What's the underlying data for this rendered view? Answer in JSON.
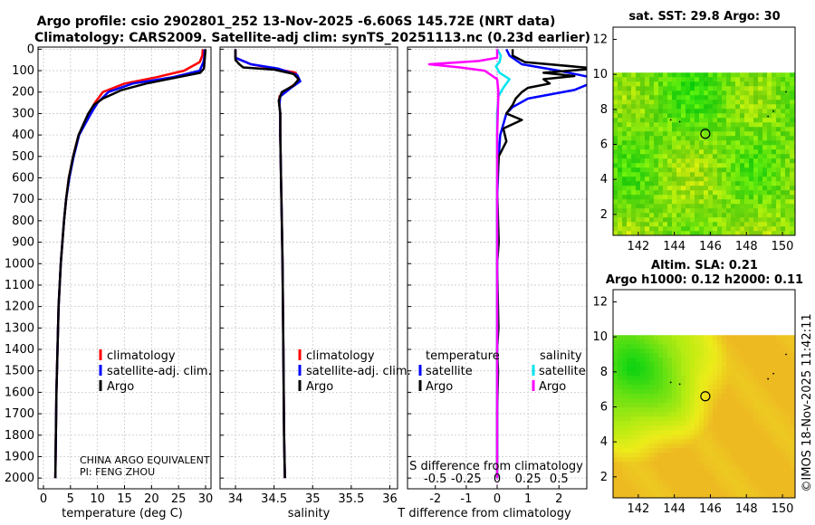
{
  "title": {
    "line1": "Argo profile: csio 2902801_252 13-Nov-2025 -6.606S 145.72E (NRT data)",
    "line2": "Climatology: CARS2009. Satellite-adj clim: synTS_20251113.nc (0.23d earlier)"
  },
  "colors": {
    "climatology": "#ff0000",
    "satellite": "#0000ff",
    "argo": "#000000",
    "sat_salinity": "#00e5ee",
    "argo_salinity": "#ff00ff",
    "grid": "#c8c8c8"
  },
  "depth_ticks": [
    "0",
    "100",
    "200",
    "300",
    "400",
    "500",
    "600",
    "700",
    "800",
    "900",
    "1000",
    "1100",
    "1200",
    "1300",
    "1400",
    "1500",
    "1600",
    "1700",
    "1800",
    "1900",
    "2000"
  ],
  "panel_temp": {
    "xlabel": "temperature (deg C)",
    "xticks": [
      "0",
      "5",
      "10",
      "15",
      "20",
      "25",
      "30"
    ],
    "legend": [
      "climatology",
      "satellite-adj. clim.",
      "Argo"
    ],
    "note1": "CHINA ARGO EQUIVALENT",
    "note2": "PI: FENG ZHOU"
  },
  "panel_sal": {
    "xlabel": "salinity",
    "xticks": [
      "34",
      "34.5",
      "35",
      "35.5",
      "36"
    ],
    "legend": [
      "climatology",
      "satellite-adj. clim.",
      "Argo"
    ]
  },
  "panel_diff": {
    "xlabel": "T difference from climatology",
    "toplabel": "S difference from climatology",
    "xticks": [
      "-2",
      "-1",
      "0",
      "1",
      "2"
    ],
    "sticks": [
      "-0.5",
      "-0.25",
      "0",
      "0.25",
      "0.5"
    ],
    "leg_t_head": "temperature",
    "leg_s_head": "salinity",
    "leg_t": [
      "satellite",
      "Argo"
    ],
    "leg_s": [
      "satellite",
      "Argo"
    ]
  },
  "map_sst": {
    "title": "sat. SST: 29.8 Argo: 30",
    "yticks": [
      "2",
      "4",
      "6",
      "8",
      "10",
      "12"
    ],
    "xticks": [
      "142",
      "144",
      "146",
      "148",
      "150"
    ]
  },
  "map_sla": {
    "title1": "Altim. SLA: 0.21",
    "title2": "Argo h1000: 0.12 h2000: 0.11",
    "yticks": [
      "2",
      "4",
      "6",
      "8",
      "10",
      "12"
    ],
    "xticks": [
      "142",
      "144",
      "146",
      "148",
      "150"
    ]
  },
  "credit": "©IMOS 18-Nov-2025 11:42:11",
  "chart_data": [
    {
      "type": "line",
      "name": "temperature profile",
      "xlabel": "temperature (deg C)",
      "ylabel": "depth",
      "xlim": [
        -1,
        31
      ],
      "ylim": [
        2050,
        0
      ],
      "series": [
        {
          "name": "climatology",
          "x": [
            29.5,
            29.4,
            28.9,
            26.0,
            21.0,
            15.0,
            11.0,
            9.5,
            8.5,
            7.5,
            6.5,
            5.5,
            4.7,
            4.2,
            3.8,
            3.5,
            3.2,
            3.0,
            2.8,
            2.7,
            2.6,
            2.5,
            2.4,
            2.3,
            2.2
          ],
          "y": [
            0,
            30,
            60,
            100,
            130,
            160,
            200,
            250,
            300,
            350,
            400,
            500,
            600,
            700,
            800,
            900,
            1000,
            1100,
            1200,
            1300,
            1400,
            1500,
            1600,
            1800,
            2000
          ]
        },
        {
          "name": "satellite-adj. clim.",
          "x": [
            29.8,
            29.8,
            29.6,
            28.9,
            24.0,
            16.5,
            12.0,
            10.0,
            8.8,
            7.7,
            6.6,
            5.6,
            4.8,
            4.2,
            3.8,
            3.5,
            3.2,
            3.0,
            2.8,
            2.7,
            2.6,
            2.5,
            2.4,
            2.3,
            2.2
          ],
          "y": [
            0,
            30,
            60,
            100,
            130,
            160,
            200,
            250,
            300,
            350,
            400,
            500,
            600,
            700,
            800,
            900,
            1000,
            1100,
            1200,
            1300,
            1400,
            1500,
            1600,
            1800,
            2000
          ]
        },
        {
          "name": "Argo",
          "x": [
            30.0,
            29.9,
            29.8,
            29.7,
            29.0,
            25.0,
            19.0,
            14.5,
            11.0,
            9.3,
            8.3,
            7.4,
            6.5,
            5.5,
            4.7,
            4.2,
            3.8,
            3.5,
            3.2,
            3.0,
            2.8,
            2.7,
            2.6,
            2.5,
            2.4,
            2.3,
            2.2
          ],
          "y": [
            0,
            30,
            60,
            90,
            110,
            130,
            160,
            190,
            230,
            260,
            300,
            350,
            400,
            500,
            600,
            700,
            800,
            900,
            1000,
            1100,
            1200,
            1300,
            1400,
            1500,
            1600,
            1800,
            2000
          ]
        }
      ]
    },
    {
      "type": "line",
      "name": "salinity profile",
      "xlabel": "salinity",
      "ylabel": "depth",
      "xlim": [
        33.8,
        36.1
      ],
      "ylim": [
        2050,
        0
      ],
      "series": [
        {
          "name": "climatology",
          "x": [
            34.0,
            34.0,
            34.2,
            34.5,
            34.78,
            34.82,
            34.7,
            34.57,
            34.57,
            34.58,
            34.58,
            34.59,
            34.6,
            34.61,
            34.62,
            34.63,
            34.64
          ],
          "y": [
            0,
            40,
            70,
            90,
            110,
            150,
            180,
            220,
            260,
            300,
            400,
            600,
            800,
            1000,
            1400,
            1800,
            2000
          ]
        },
        {
          "name": "satellite-adj. clim.",
          "x": [
            34.0,
            34.0,
            34.2,
            34.55,
            34.8,
            34.84,
            34.72,
            34.58,
            34.57,
            34.58,
            34.58,
            34.59,
            34.6,
            34.61,
            34.62,
            34.63,
            34.64
          ],
          "y": [
            0,
            40,
            70,
            90,
            120,
            150,
            180,
            220,
            260,
            300,
            400,
            600,
            800,
            1000,
            1400,
            1800,
            2000
          ]
        },
        {
          "name": "Argo",
          "x": [
            34.0,
            34.0,
            34.05,
            34.1,
            34.5,
            34.75,
            34.82,
            34.75,
            34.6,
            34.56,
            34.58,
            34.58,
            34.59,
            34.6,
            34.61,
            34.62,
            34.63,
            34.64
          ],
          "y": [
            0,
            50,
            70,
            85,
            95,
            115,
            140,
            170,
            200,
            240,
            300,
            400,
            600,
            800,
            1000,
            1400,
            1800,
            2000
          ]
        }
      ]
    },
    {
      "type": "line",
      "name": "difference from climatology",
      "xlabel": "T difference from climatology",
      "x2label": "S difference from climatology",
      "xlim": [
        -2.9,
        2.9
      ],
      "x2lim": [
        -0.725,
        0.725
      ],
      "ylim": [
        2050,
        0
      ],
      "series": [
        {
          "name": "temperature satellite",
          "axis": "T",
          "x": [
            0.3,
            0.4,
            0.8,
            2.0,
            3.0,
            3.0,
            2.5,
            1.0,
            0.5,
            0.3,
            0.2,
            0.1,
            0.05,
            0.0,
            0.0,
            0.0
          ],
          "y": [
            0,
            30,
            70,
            100,
            130,
            160,
            190,
            230,
            270,
            300,
            350,
            400,
            500,
            700,
            1000,
            2000
          ]
        },
        {
          "name": "temperature Argo",
          "axis": "T",
          "x": [
            0.5,
            0.5,
            0.9,
            3.2,
            1.5,
            2.5,
            1.5,
            1.7,
            1.0,
            0.8,
            0.6,
            0.5,
            0.3,
            0.8,
            0.2,
            0.3,
            0.05,
            0.0,
            0.05,
            0.0,
            0.04,
            0.0,
            0.03,
            0.0,
            0.0
          ],
          "y": [
            0,
            30,
            60,
            90,
            110,
            125,
            140,
            160,
            180,
            200,
            230,
            260,
            300,
            330,
            370,
            430,
            500,
            650,
            900,
            1000,
            1300,
            1400,
            1500,
            1700,
            2000
          ]
        },
        {
          "name": "salinity satellite",
          "axis": "S",
          "x": [
            0.0,
            0.03,
            0.02,
            -0.01,
            0.02,
            0.1,
            0.05,
            0.01,
            0.0,
            0.0,
            0.0
          ],
          "y": [
            0,
            30,
            60,
            80,
            110,
            140,
            180,
            220,
            300,
            1000,
            2000
          ]
        },
        {
          "name": "salinity Argo",
          "axis": "S",
          "x": [
            0.0,
            0.0,
            -0.15,
            -0.55,
            -0.3,
            -0.1,
            0.0,
            0.01,
            0.0,
            0.0
          ],
          "y": [
            0,
            40,
            55,
            70,
            85,
            100,
            140,
            200,
            400,
            2000
          ]
        }
      ]
    },
    {
      "type": "heatmap",
      "name": "sat. SST map",
      "title": "sat. SST: 29.8 Argo: 30",
      "xlim": [
        140.6,
        150.7
      ],
      "ylim": [
        0.8,
        12.7
      ],
      "data_extent_lat": [
        0.8,
        10.1
      ],
      "argo_location": [
        145.72,
        6.606
      ]
    },
    {
      "type": "heatmap",
      "name": "Altim. SLA map",
      "title": "Altim. SLA: 0.21 / Argo h1000: 0.12 h2000: 0.11",
      "xlim": [
        140.6,
        150.7
      ],
      "ylim": [
        0.8,
        12.7
      ],
      "data_extent_lat": [
        0.8,
        10.1
      ],
      "argo_location": [
        145.72,
        6.606
      ]
    }
  ]
}
